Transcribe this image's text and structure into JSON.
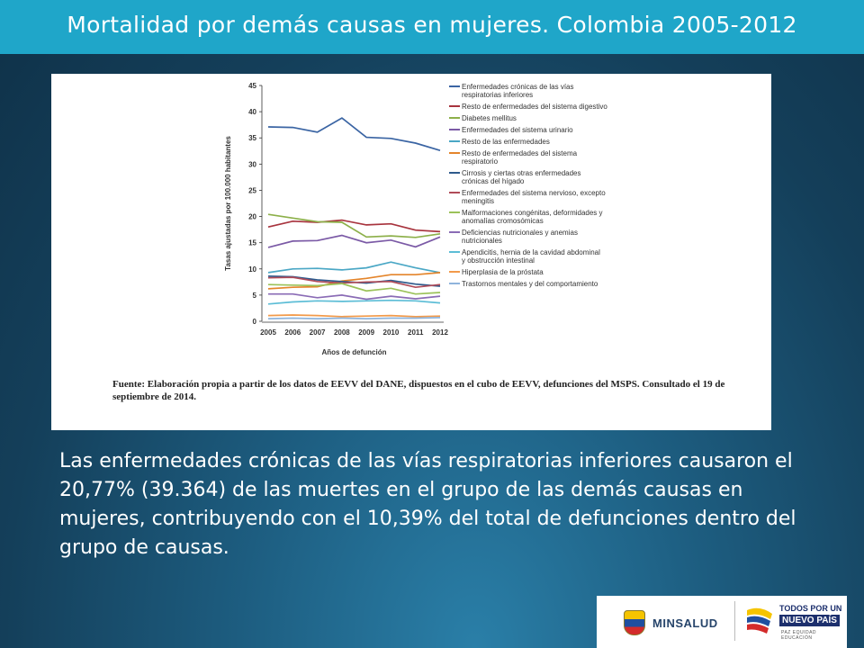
{
  "title": "Mortalidad por demás causas en mujeres. Colombia 2005-2012",
  "chart_data": {
    "type": "line",
    "x": [
      "2005",
      "2006",
      "2007",
      "2008",
      "2009",
      "2010",
      "2011",
      "2012"
    ],
    "ylabel": "Tasas ajustadas por 100.000 habitantes",
    "xlabel": "Años de defunción",
    "ylim": [
      0,
      45
    ],
    "yticks": [
      0,
      5,
      10,
      15,
      20,
      25,
      30,
      35,
      40,
      45
    ],
    "grid": false,
    "legend_position": "right",
    "series": [
      {
        "name": "Enfermedades crónicas de las vías respiratorias inferiores",
        "color": "#3a64a3",
        "values": [
          37.1,
          37.0,
          36.1,
          38.8,
          35.1,
          34.9,
          34.0,
          32.6
        ]
      },
      {
        "name": "Resto de enfermedades del sistema digestivo",
        "color": "#a8343e",
        "values": [
          18.0,
          19.1,
          18.9,
          19.3,
          18.4,
          18.6,
          17.4,
          17.1
        ]
      },
      {
        "name": "Diabetes mellitus",
        "color": "#8db04a",
        "values": [
          20.4,
          19.7,
          19.0,
          18.9,
          16.1,
          16.3,
          16.0,
          16.7
        ]
      },
      {
        "name": "Enfermedades del sistema urinario",
        "color": "#7b5aa6",
        "values": [
          14.1,
          15.3,
          15.4,
          16.4,
          15.0,
          15.5,
          14.2,
          16.1
        ]
      },
      {
        "name": "Resto de las enfermedades",
        "color": "#4aa7c5",
        "values": [
          9.3,
          10.0,
          10.1,
          9.8,
          10.2,
          11.3,
          10.2,
          9.3
        ]
      },
      {
        "name": "Resto de enfermedades del sistema respiratorio",
        "color": "#e4852b",
        "values": [
          6.2,
          6.5,
          6.6,
          7.7,
          8.2,
          8.9,
          8.9,
          9.3
        ]
      },
      {
        "name": "Cirrosis y ciertas otras enfermedades crónicas del hígado",
        "color": "#2e5a8c",
        "values": [
          8.6,
          8.5,
          7.9,
          7.6,
          7.3,
          7.8,
          7.1,
          6.7
        ]
      },
      {
        "name": "Enfermedades del sistema nervioso, excepto meningitis",
        "color": "#b04b58",
        "values": [
          8.3,
          8.4,
          7.6,
          7.3,
          7.5,
          7.6,
          6.5,
          7.0
        ]
      },
      {
        "name": "Malformaciones congénitas, deformidades y anomalías cromosómicas",
        "color": "#9bc259",
        "values": [
          7.0,
          6.9,
          6.8,
          7.2,
          5.8,
          6.3,
          5.2,
          5.5
        ]
      },
      {
        "name": "Deficiencias nutricionales y anemias nutricionales",
        "color": "#8a6bb5",
        "values": [
          5.2,
          5.2,
          4.5,
          5.0,
          4.2,
          4.8,
          4.3,
          4.8
        ]
      },
      {
        "name": "Apendicitis, hernia de la cavidad abdominal y obstrucción intestinal",
        "color": "#5cbdd6",
        "values": [
          3.3,
          3.7,
          3.9,
          3.8,
          3.9,
          4.0,
          3.9,
          3.5
        ]
      },
      {
        "name": "Hiperplasia de la próstata",
        "color": "#f29a4a",
        "values": [
          1.1,
          1.2,
          1.1,
          0.9,
          1.0,
          1.1,
          0.9,
          1.0
        ]
      },
      {
        "name": "Trastornos mentales y del comportamiento",
        "color": "#8fb4dc",
        "values": [
          0.5,
          0.6,
          0.5,
          0.6,
          0.5,
          0.6,
          0.6,
          0.7
        ]
      }
    ]
  },
  "source_note": "Fuente: Elaboración propia a partir de los datos de EEVV del DANE, dispuestos en el cubo de EEVV, defunciones del MSPS. Consultado el 19 de septiembre de 2014.",
  "body_text": "Las enfermedades crónicas de las vías respiratorias inferiores causaron el 20,77% (39.364) de las muertes en el grupo de las demás causas en mujeres, contribuyendo con el 10,39% del total de defunciones dentro del grupo de causas.",
  "logos": {
    "minsalud": "MINSALUD",
    "tppais_line1": "TODOS POR UN",
    "tppais_line2": "NUEVO PAÍS",
    "tppais_line3": "PAZ  EQUIDAD  EDUCACIÓN"
  }
}
